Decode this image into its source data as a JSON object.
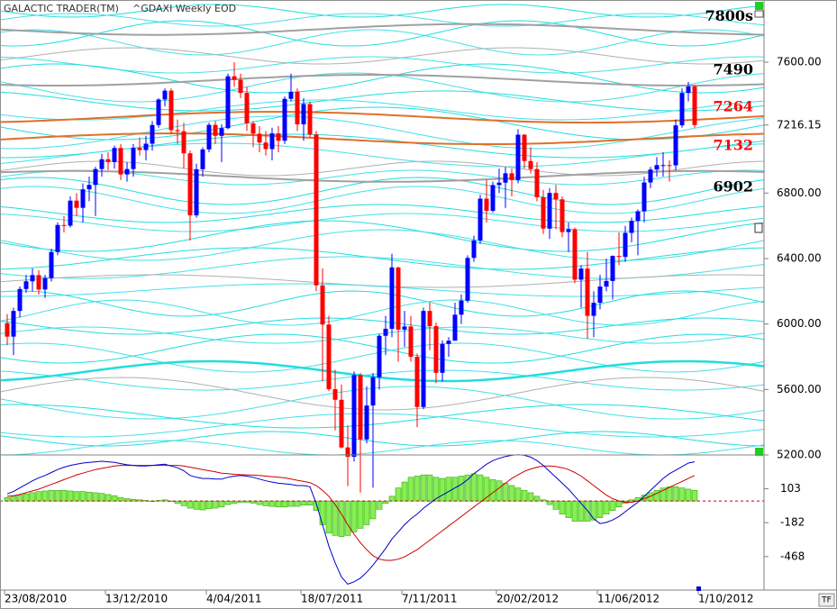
{
  "chart_data": [
    {
      "type": "candlestick",
      "title": "GALACTIC TRADER(TM)",
      "subtitle": "^GDAXI Weekly EOD",
      "up_color": "#0000ff",
      "down_color": "#ff0000",
      "ylim": [
        5200,
        7980
      ],
      "yticks": [
        {
          "value": 5200,
          "label": "5200.00"
        },
        {
          "value": 5600,
          "label": "5600.00"
        },
        {
          "value": 6000,
          "label": "6000.00"
        },
        {
          "value": 6400,
          "label": "6400.00"
        },
        {
          "value": 6800,
          "label": "6800.00"
        },
        {
          "value": 7216.15,
          "label": "7216.15"
        },
        {
          "value": 7600,
          "label": "7600.00"
        }
      ],
      "xticks": [
        {
          "value": 0,
          "label": "23/08/2010"
        },
        {
          "value": 16,
          "label": "13/12/2010"
        },
        {
          "value": 32,
          "label": "4/04/2011"
        },
        {
          "value": 47,
          "label": "18/07/2011"
        },
        {
          "value": 63,
          "label": "7/11/2011"
        },
        {
          "value": 78,
          "label": "20/02/2012"
        },
        {
          "value": 94,
          "label": "11/06/2012"
        },
        {
          "value": 110,
          "label": "1/10/2012"
        }
      ],
      "annotations": [
        {
          "value": 7800,
          "label": "7800s",
          "color": "#000000",
          "line_color": "#a0a0a0"
        },
        {
          "value": 7490,
          "label": "7490",
          "color": "#000000",
          "line_color": "#a0a0a0"
        },
        {
          "value": 7264,
          "label": "7264",
          "color": "#ff0000",
          "line_color": "#e0702a"
        },
        {
          "value": 7132,
          "label": "7132",
          "color": "#ff0000",
          "line_color": "#e0702a"
        },
        {
          "value": 6902,
          "label": "6902",
          "color": "#000000",
          "line_color": "#a0a0a0"
        }
      ],
      "ohlc": [
        [
          6005,
          6060,
          5870,
          5923
        ],
        [
          5923,
          6100,
          5810,
          6080
        ],
        [
          6080,
          6230,
          6040,
          6214
        ],
        [
          6214,
          6300,
          6190,
          6261
        ],
        [
          6261,
          6340,
          6200,
          6299
        ],
        [
          6299,
          6330,
          6180,
          6211
        ],
        [
          6211,
          6300,
          6160,
          6281
        ],
        [
          6281,
          6460,
          6260,
          6440
        ],
        [
          6440,
          6620,
          6420,
          6605
        ],
        [
          6605,
          6660,
          6560,
          6601
        ],
        [
          6601,
          6780,
          6590,
          6754
        ],
        [
          6754,
          6800,
          6660,
          6710
        ],
        [
          6710,
          6860,
          6620,
          6823
        ],
        [
          6823,
          6900,
          6750,
          6850
        ],
        [
          6850,
          6960,
          6660,
          6947
        ],
        [
          6947,
          7040,
          6900,
          7007
        ],
        [
          7007,
          7050,
          6940,
          6990
        ],
        [
          6990,
          7090,
          6950,
          7076
        ],
        [
          7076,
          7100,
          6880,
          6914
        ],
        [
          6914,
          6990,
          6870,
          6947
        ],
        [
          6947,
          7100,
          6900,
          7076
        ],
        [
          7076,
          7140,
          7030,
          7063
        ],
        [
          7063,
          7150,
          7000,
          7102
        ],
        [
          7102,
          7240,
          7060,
          7216
        ],
        [
          7216,
          7380,
          7200,
          7372
        ],
        [
          7372,
          7440,
          7330,
          7426
        ],
        [
          7426,
          7440,
          7160,
          7185
        ],
        [
          7185,
          7250,
          7100,
          7178
        ],
        [
          7178,
          7230,
          6950,
          7043
        ],
        [
          7043,
          7060,
          6510,
          6664
        ],
        [
          6664,
          6980,
          6650,
          6946
        ],
        [
          6946,
          7080,
          6900,
          7067
        ],
        [
          7067,
          7230,
          7050,
          7217
        ],
        [
          7217,
          7240,
          7100,
          7150
        ],
        [
          7150,
          7220,
          6990,
          7197
        ],
        [
          7197,
          7530,
          7190,
          7514
        ],
        [
          7514,
          7600,
          7450,
          7492
        ],
        [
          7492,
          7530,
          7380,
          7412
        ],
        [
          7412,
          7450,
          7180,
          7226
        ],
        [
          7226,
          7240,
          7080,
          7163
        ],
        [
          7163,
          7210,
          7050,
          7109
        ],
        [
          7109,
          7180,
          7030,
          7069
        ],
        [
          7069,
          7200,
          7000,
          7165
        ],
        [
          7165,
          7210,
          7050,
          7120
        ],
        [
          7120,
          7390,
          7100,
          7376
        ],
        [
          7376,
          7530,
          7360,
          7419
        ],
        [
          7419,
          7440,
          7180,
          7220
        ],
        [
          7220,
          7380,
          7120,
          7344
        ],
        [
          7344,
          7360,
          7140,
          7158
        ],
        [
          7158,
          7180,
          6200,
          6236
        ],
        [
          6236,
          6340,
          5650,
          5997
        ],
        [
          5997,
          6050,
          5590,
          5602
        ],
        [
          5602,
          5720,
          5350,
          5537
        ],
        [
          5537,
          5630,
          5240,
          5246
        ],
        [
          5246,
          5380,
          5010,
          5189
        ],
        [
          5189,
          5710,
          5160,
          5688
        ],
        [
          5688,
          5700,
          4970,
          5295
        ],
        [
          5295,
          5620,
          5270,
          5502
        ],
        [
          5502,
          5700,
          5000,
          5675
        ],
        [
          5675,
          5940,
          5600,
          5928
        ],
        [
          5928,
          6050,
          5810,
          5971
        ],
        [
          5971,
          6430,
          5920,
          6346
        ],
        [
          6346,
          6350,
          5770,
          5966
        ],
        [
          5966,
          6080,
          5860,
          5985
        ],
        [
          5985,
          6050,
          5770,
          5800
        ],
        [
          5800,
          5820,
          5370,
          5493
        ],
        [
          5493,
          6100,
          5480,
          6080
        ],
        [
          6080,
          6130,
          5840,
          5987
        ],
        [
          5987,
          6010,
          5640,
          5702
        ],
        [
          5702,
          5900,
          5650,
          5878
        ],
        [
          5878,
          5920,
          5800,
          5898
        ],
        [
          5898,
          6130,
          5900,
          6057
        ],
        [
          6057,
          6180,
          6000,
          6143
        ],
        [
          6143,
          6420,
          6130,
          6404
        ],
        [
          6404,
          6540,
          6380,
          6511
        ],
        [
          6511,
          6790,
          6490,
          6766
        ],
        [
          6766,
          6880,
          6620,
          6692
        ],
        [
          6692,
          6870,
          6680,
          6849
        ],
        [
          6849,
          6950,
          6800,
          6864
        ],
        [
          6864,
          6960,
          6710,
          6921
        ],
        [
          6921,
          6950,
          6780,
          6880
        ],
        [
          6880,
          7190,
          6860,
          7157
        ],
        [
          7157,
          7160,
          6950,
          6996
        ],
        [
          6996,
          7080,
          6920,
          6947
        ],
        [
          6947,
          6990,
          6750,
          6775
        ],
        [
          6775,
          6820,
          6550,
          6583
        ],
        [
          6583,
          6830,
          6520,
          6801
        ],
        [
          6801,
          6850,
          6580,
          6762
        ],
        [
          6762,
          6780,
          6530,
          6562
        ],
        [
          6562,
          6620,
          6440,
          6579
        ],
        [
          6579,
          6590,
          6250,
          6271
        ],
        [
          6271,
          6360,
          6100,
          6339
        ],
        [
          6339,
          6440,
          5910,
          6050
        ],
        [
          6050,
          6200,
          5920,
          6130
        ],
        [
          6130,
          6300,
          6090,
          6229
        ],
        [
          6229,
          6400,
          6200,
          6263
        ],
        [
          6263,
          6420,
          6150,
          6416
        ],
        [
          6416,
          6560,
          6360,
          6410
        ],
        [
          6410,
          6600,
          6380,
          6557
        ],
        [
          6557,
          6650,
          6500,
          6630
        ],
        [
          6630,
          6700,
          6420,
          6689
        ],
        [
          6689,
          6900,
          6620,
          6865
        ],
        [
          6865,
          6960,
          6830,
          6944
        ],
        [
          6944,
          7020,
          6900,
          6971
        ],
        [
          6971,
          7050,
          6900,
          6971
        ],
        [
          6971,
          7000,
          6870,
          6970
        ],
        [
          6970,
          7250,
          6940,
          7214
        ],
        [
          7214,
          7440,
          7200,
          7412
        ],
        [
          7412,
          7480,
          7360,
          7451
        ],
        [
          7451,
          7460,
          7200,
          7216
        ]
      ]
    },
    {
      "type": "macd",
      "ylim": [
        -750,
        388
      ],
      "yticks": [
        103,
        -182,
        -468
      ],
      "macd": {
        "color": "#0000cc",
        "values": [
          60,
          80,
          110,
          140,
          170,
          195,
          215,
          240,
          265,
          285,
          300,
          310,
          320,
          325,
          330,
          335,
          330,
          325,
          315,
          305,
          300,
          295,
          295,
          300,
          305,
          310,
          295,
          280,
          255,
          215,
          200,
          190,
          190,
          185,
          185,
          200,
          210,
          215,
          210,
          200,
          185,
          170,
          160,
          150,
          145,
          140,
          130,
          130,
          120,
          -20,
          -200,
          -380,
          -520,
          -640,
          -700,
          -680,
          -650,
          -600,
          -540,
          -470,
          -400,
          -320,
          -260,
          -200,
          -150,
          -110,
          -60,
          -20,
          20,
          50,
          80,
          110,
          140,
          180,
          230,
          270,
          310,
          340,
          360,
          375,
          385,
          390,
          385,
          370,
          340,
          300,
          250,
          200,
          150,
          100,
          40,
          -20,
          -80,
          -150,
          -190,
          -180,
          -160,
          -130,
          -90,
          -50,
          -10,
          40,
          90,
          140,
          190,
          230,
          260,
          290,
          320,
          330
        ]
      },
      "signal": {
        "color": "#cc0000",
        "values": [
          40,
          45,
          55,
          70,
          85,
          100,
          120,
          140,
          160,
          180,
          200,
          220,
          235,
          250,
          265,
          275,
          285,
          295,
          300,
          300,
          300,
          300,
          300,
          300,
          300,
          300,
          300,
          300,
          295,
          285,
          275,
          265,
          255,
          245,
          235,
          230,
          225,
          222,
          220,
          218,
          215,
          210,
          205,
          200,
          195,
          185,
          175,
          165,
          155,
          130,
          90,
          40,
          -30,
          -110,
          -200,
          -280,
          -350,
          -410,
          -460,
          -490,
          -500,
          -500,
          -490,
          -470,
          -440,
          -410,
          -370,
          -330,
          -290,
          -250,
          -210,
          -170,
          -130,
          -90,
          -50,
          -10,
          30,
          70,
          110,
          150,
          190,
          220,
          250,
          270,
          285,
          295,
          295,
          290,
          280,
          265,
          240,
          210,
          170,
          130,
          90,
          50,
          20,
          0,
          -10,
          -10,
          0,
          20,
          40,
          65,
          90,
          115,
          140,
          165,
          190,
          215
        ]
      },
      "histogram": {
        "color": "#88ee55",
        "values": [
          30,
          40,
          50,
          60,
          70,
          80,
          85,
          90,
          90,
          90,
          85,
          80,
          80,
          75,
          70,
          65,
          55,
          45,
          30,
          20,
          15,
          10,
          5,
          0,
          5,
          10,
          -5,
          -20,
          -40,
          -60,
          -70,
          -75,
          -65,
          -60,
          -50,
          -30,
          -20,
          -10,
          -10,
          -18,
          -30,
          -40,
          -45,
          -50,
          -50,
          -45,
          -45,
          -35,
          -35,
          -80,
          -200,
          -270,
          -290,
          -300,
          -290,
          -260,
          -230,
          -200,
          -150,
          -70,
          -20,
          40,
          110,
          160,
          200,
          210,
          220,
          220,
          200,
          190,
          200,
          200,
          210,
          220,
          230,
          220,
          200,
          180,
          170,
          150,
          130,
          110,
          90,
          70,
          40,
          10,
          -30,
          -70,
          -110,
          -140,
          -170,
          -170,
          -170,
          -160,
          -140,
          -110,
          -80,
          -50,
          -20,
          10,
          30,
          50,
          70,
          90,
          110,
          120,
          120,
          110,
          100,
          90
        ]
      }
    }
  ]
}
